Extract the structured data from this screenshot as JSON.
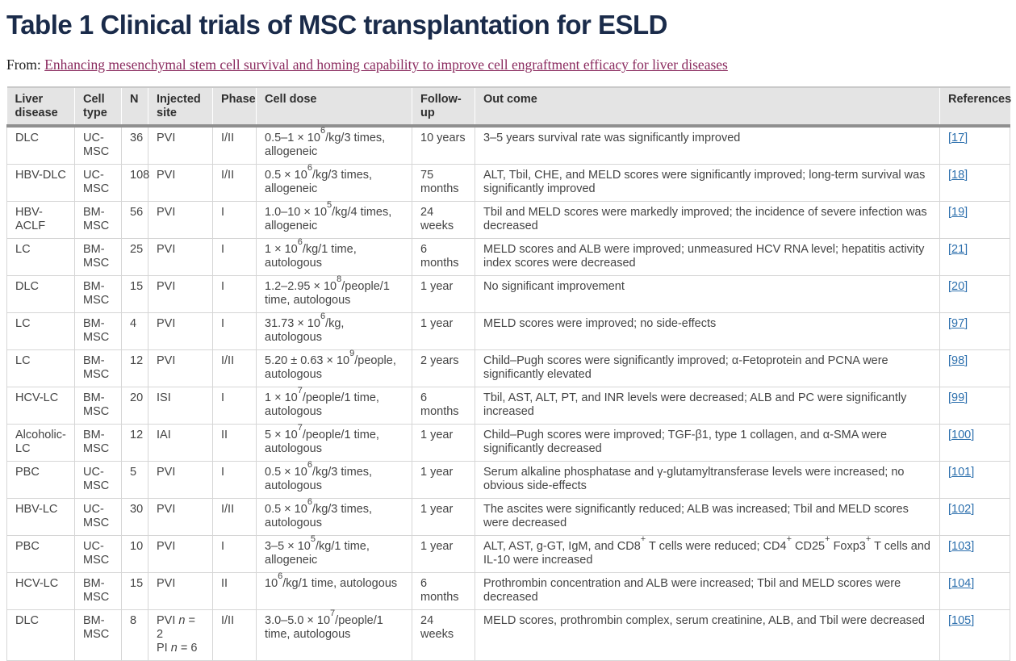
{
  "header": {
    "title": "Table 1 Clinical trials of MSC transplantation for ESLD",
    "from_label": "From: ",
    "article_link": "Enhancing mesenchymal stem cell survival and homing capability to improve cell engraftment efficacy for liver diseases"
  },
  "colors": {
    "title": "#1a2b4a",
    "article-link": "#8a2a5e",
    "reference-link": "#2c6fad",
    "header-bg": "#e4e4e4",
    "border-dark": "#8f8f8f",
    "border-light": "#d6d6d6",
    "body-text": "#444444"
  },
  "table": {
    "headers": [
      "Liver disease",
      "Cell type",
      "N",
      "Injected site",
      "Phase",
      "Cell dose",
      "Follow-up",
      "Out come",
      "References"
    ],
    "rows": [
      {
        "disease": "DLC",
        "cell_type": "UC-MSC",
        "n": "36",
        "site": "PVI",
        "phase": "I/II",
        "dose": "0.5–1 × 10^{6}/kg/3 times, allogeneic",
        "follow_up": "10 years",
        "outcome": "3–5 years survival rate was significantly improved",
        "ref": "17"
      },
      {
        "disease": "HBV-DLC",
        "cell_type": "UC-MSC",
        "n": "108",
        "site": "PVI",
        "phase": "I/II",
        "dose": "0.5 × 10^{6}/kg/3 times, allogeneic",
        "follow_up": "75 months",
        "outcome": "ALT, Tbil, CHE, and MELD scores were significantly improved; long-term survival was significantly improved",
        "ref": "18"
      },
      {
        "disease": "HBV-ACLF",
        "cell_type": "BM-MSC",
        "n": "56",
        "site": "PVI",
        "phase": "I",
        "dose": "1.0–10 × 10^{5}/kg/4 times, allogeneic",
        "follow_up": "24 weeks",
        "outcome": "Tbil and MELD scores were markedly improved; the incidence of severe infection was decreased",
        "ref": "19"
      },
      {
        "disease": "LC",
        "cell_type": "BM-MSC",
        "n": "25",
        "site": "PVI",
        "phase": "I",
        "dose": "1 × 10^{6}/kg/1 time, autologous",
        "follow_up": "6 months",
        "outcome": "MELD scores and ALB were improved; unmeasured HCV RNA level; hepatitis activity index scores were decreased",
        "ref": "21"
      },
      {
        "disease": "DLC",
        "cell_type": "BM-MSC",
        "n": "15",
        "site": "PVI",
        "phase": "I",
        "dose": "1.2–2.95 × 10^{8}/people/1 time, autologous",
        "follow_up": "1 year",
        "outcome": "No significant improvement",
        "ref": "20"
      },
      {
        "disease": "LC",
        "cell_type": "BM-MSC",
        "n": "4",
        "site": "PVI",
        "phase": "I",
        "dose": "31.73 × 10^{6}/kg, autologous",
        "follow_up": "1 year",
        "outcome": "MELD scores were improved; no side-effects",
        "ref": "97"
      },
      {
        "disease": "LC",
        "cell_type": "BM-MSC",
        "n": "12",
        "site": "PVI",
        "phase": "I/II",
        "dose": "5.20 ± 0.63 × 10^{9}/people, autologous",
        "follow_up": "2 years",
        "outcome": "Child–Pugh scores were significantly improved; α-Fetoprotein and PCNA were significantly elevated",
        "ref": "98"
      },
      {
        "disease": "HCV-LC",
        "cell_type": "BM-MSC",
        "n": "20",
        "site": "ISI",
        "phase": "I",
        "dose": "1 × 10^{7}/people/1 time, autologous",
        "follow_up": "6 months",
        "outcome": "Tbil, AST, ALT, PT, and INR levels were decreased; ALB and PC were significantly increased",
        "ref": "99"
      },
      {
        "disease": "Alcoholic-LC",
        "cell_type": "BM-MSC",
        "n": "12",
        "site": "IAI",
        "phase": "II",
        "dose": "5 × 10^{7}/people/1 time, autologous",
        "follow_up": "1 year",
        "outcome": "Child–Pugh scores were improved; TGF-β1, type 1 collagen, and α-SMA were significantly decreased",
        "ref": "100"
      },
      {
        "disease": "PBC",
        "cell_type": "UC-MSC",
        "n": "5",
        "site": "PVI",
        "phase": "I",
        "dose": "0.5 × 10^{6}/kg/3 times, autologous",
        "follow_up": "1 year",
        "outcome": "Serum alkaline phosphatase and γ-glutamyltransferase levels were increased; no obvious side-effects",
        "ref": "101"
      },
      {
        "disease": "HBV-LC",
        "cell_type": "UC-MSC",
        "n": "30",
        "site": "PVI",
        "phase": "I/II",
        "dose": "0.5 × 10^{6}/kg/3 times, autologous",
        "follow_up": "1 year",
        "outcome": "The ascites were significantly reduced; ALB was increased; Tbil and MELD scores were decreased",
        "ref": "102"
      },
      {
        "disease": "PBC",
        "cell_type": "UC-MSC",
        "n": "10",
        "site": "PVI",
        "phase": "I",
        "dose": "3–5 × 10^{5}/kg/1 time, allogeneic",
        "follow_up": "1 year",
        "outcome": "ALT, AST, g-GT, IgM, and CD8^{+} T cells were reduced; CD4^{+} CD25^{+} Foxp3^{+} T cells and IL-10 were increased",
        "ref": "103"
      },
      {
        "disease": "HCV-LC",
        "cell_type": "BM-MSC",
        "n": "15",
        "site": "PVI",
        "phase": "II",
        "dose": "10^{6}/kg/1 time, autologous",
        "follow_up": "6 months",
        "outcome": "Prothrombin concentration and ALB were increased; Tbil and MELD scores were decreased",
        "ref": "104"
      },
      {
        "disease": "DLC",
        "cell_type": "BM-MSC",
        "n": "8",
        "site": "PVI *n* = 2\nPI *n* = 6",
        "phase": "I/II",
        "dose": "3.0–5.0 × 10^{7}/people/1 time, autologous",
        "follow_up": "24 weeks",
        "outcome": "MELD scores, prothrombin complex, serum creatinine, ALB, and Tbil were decreased",
        "ref": "105"
      }
    ]
  }
}
